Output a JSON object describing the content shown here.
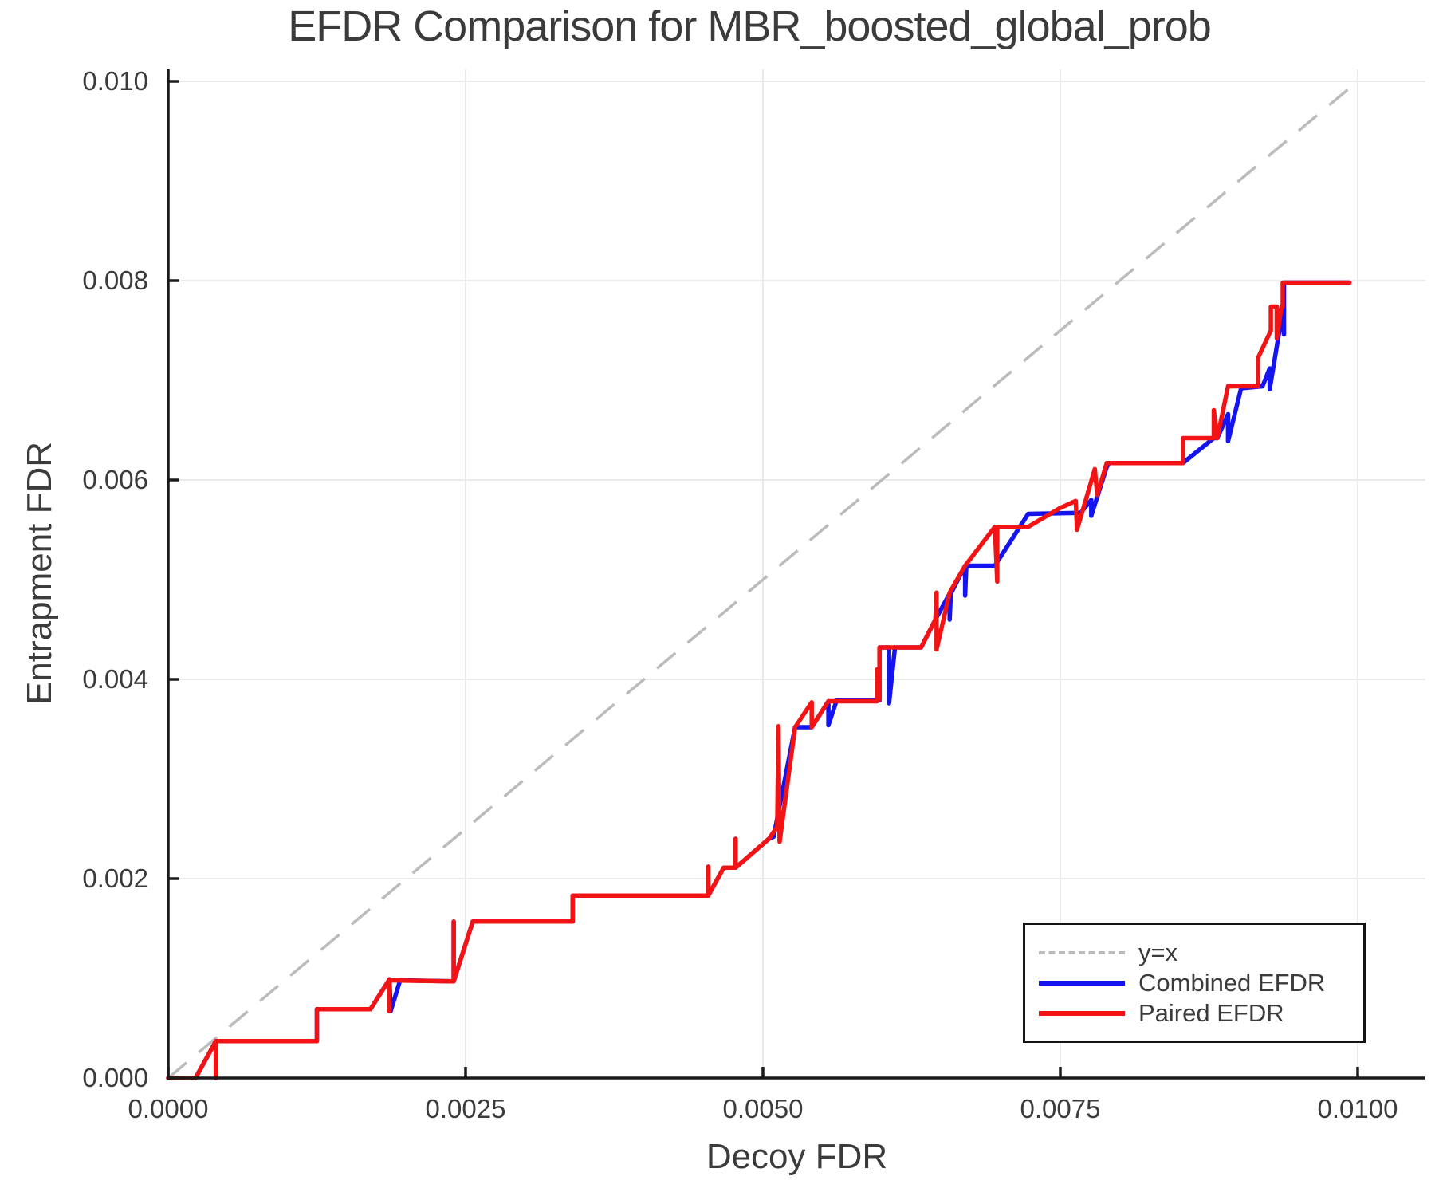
{
  "figure": {
    "title": "EFDR Comparison for MBR_boosted_global_prob",
    "xlabel": "Decoy FDR",
    "ylabel": "Entrapment FDR"
  },
  "colors": {
    "background": "#ffffff",
    "grid": "#e7e7e7",
    "spine": "#1a1a1a",
    "text": "#3b3b3b",
    "identity": "#bbbbbb",
    "combined": "#1414f0",
    "paired": "#f21414"
  },
  "chart_data": {
    "type": "line",
    "title": "EFDR Comparison for MBR_boosted_global_prob",
    "xlabel": "Decoy FDR",
    "ylabel": "Entrapment FDR",
    "xlim": [
      0,
      0.01057
    ],
    "ylim": [
      0,
      0.01012
    ],
    "grid": true,
    "legend_position": "lower right",
    "x_ticks": {
      "values": [
        0,
        0.0025,
        0.005,
        0.0075,
        0.01
      ],
      "labels": [
        "0.0000",
        "0.0025",
        "0.0050",
        "0.0075",
        "0.0100"
      ]
    },
    "y_ticks": {
      "values": [
        0,
        0.002,
        0.004,
        0.006,
        0.008,
        0.01
      ],
      "labels": [
        "0.000",
        "0.002",
        "0.004",
        "0.006",
        "0.008",
        "0.010"
      ]
    },
    "legend": {
      "entries": [
        {
          "label": "y=x",
          "color": "#bbbbbb",
          "style": "dashed"
        },
        {
          "label": "Combined EFDR",
          "color": "#1414f0",
          "style": "solid"
        },
        {
          "label": "Paired EFDR",
          "color": "#f21414",
          "style": "solid"
        }
      ]
    },
    "identity_line": {
      "label": "y=x",
      "color": "#bbbbbb",
      "points": [
        [
          0,
          0
        ],
        [
          0.00996,
          0.00996
        ]
      ]
    },
    "series": [
      {
        "name": "Combined EFDR",
        "color": "#1414f0",
        "points": [
          [
            0,
            0
          ],
          [
            0.00023,
            0
          ],
          [
            0.0004,
            0.00037
          ],
          [
            0.0004,
            0
          ],
          [
            0.0004,
            0.00037
          ],
          [
            0.00125,
            0.00037
          ],
          [
            0.00125,
            0.00069
          ],
          [
            0.0017,
            0.00069
          ],
          [
            0.00186,
            0.00099
          ],
          [
            0.00187,
            0.00067
          ],
          [
            0.00195,
            0.00098
          ],
          [
            0.0024,
            0.00097
          ],
          [
            0.0024,
            0.00157
          ],
          [
            0.0024,
            0.00097
          ],
          [
            0.00256,
            0.00157
          ],
          [
            0.0034,
            0.00157
          ],
          [
            0.0034,
            0.00183
          ],
          [
            0.00454,
            0.00183
          ],
          [
            0.00454,
            0.00212
          ],
          [
            0.00454,
            0.00183
          ],
          [
            0.00467,
            0.00211
          ],
          [
            0.00477,
            0.00211
          ],
          [
            0.00477,
            0.0024
          ],
          [
            0.00477,
            0.00211
          ],
          [
            0.00505,
            0.0024
          ],
          [
            0.00509,
            0.00242
          ],
          [
            0.00527,
            0.00352
          ],
          [
            0.00541,
            0.00352
          ],
          [
            0.00555,
            0.00378
          ],
          [
            0.00555,
            0.00354
          ],
          [
            0.00562,
            0.00379
          ],
          [
            0.00598,
            0.00379
          ],
          [
            0.00598,
            0.00432
          ],
          [
            0.00606,
            0.00432
          ],
          [
            0.00606,
            0.00376
          ],
          [
            0.00611,
            0.00432
          ],
          [
            0.00633,
            0.00432
          ],
          [
            0.00645,
            0.0046
          ],
          [
            0.00657,
            0.00486
          ],
          [
            0.00657,
            0.0046
          ],
          [
            0.00658,
            0.00486
          ],
          [
            0.0067,
            0.00514
          ],
          [
            0.0067,
            0.00484
          ],
          [
            0.00671,
            0.00514
          ],
          [
            0.00695,
            0.00514
          ],
          [
            0.00723,
            0.00566
          ],
          [
            0.00767,
            0.00567
          ],
          [
            0.00776,
            0.0058
          ],
          [
            0.00776,
            0.00564
          ],
          [
            0.00789,
            0.00613
          ],
          [
            0.00791,
            0.00617
          ],
          [
            0.00853,
            0.00617
          ],
          [
            0.00879,
            0.00642
          ],
          [
            0.00882,
            0.00642
          ],
          [
            0.00891,
            0.00666
          ],
          [
            0.00891,
            0.00639
          ],
          [
            0.00902,
            0.00692
          ],
          [
            0.0092,
            0.00694
          ],
          [
            0.00926,
            0.00712
          ],
          [
            0.00926,
            0.00691
          ],
          [
            0.00937,
            0.0077
          ],
          [
            0.00938,
            0.00746
          ],
          [
            0.00938,
            0.00798
          ],
          [
            0.00993,
            0.00798
          ]
        ]
      },
      {
        "name": "Paired EFDR",
        "color": "#f21414",
        "points": [
          [
            0,
            0
          ],
          [
            0.00023,
            0
          ],
          [
            0.0004,
            0.00037
          ],
          [
            0.0004,
            0
          ],
          [
            0.0004,
            0.00037
          ],
          [
            0.00125,
            0.00037
          ],
          [
            0.00125,
            0.00069
          ],
          [
            0.0017,
            0.00069
          ],
          [
            0.00186,
            0.00099
          ],
          [
            0.00186,
            0.00067
          ],
          [
            0.00186,
            0.00098
          ],
          [
            0.0024,
            0.00097
          ],
          [
            0.0024,
            0.00157
          ],
          [
            0.0024,
            0.00097
          ],
          [
            0.00256,
            0.00157
          ],
          [
            0.0034,
            0.00157
          ],
          [
            0.0034,
            0.00183
          ],
          [
            0.00454,
            0.00183
          ],
          [
            0.00454,
            0.00212
          ],
          [
            0.00454,
            0.00183
          ],
          [
            0.00467,
            0.00211
          ],
          [
            0.00477,
            0.00211
          ],
          [
            0.00477,
            0.0024
          ],
          [
            0.00477,
            0.00211
          ],
          [
            0.00505,
            0.0024
          ],
          [
            0.00512,
            0.00252
          ],
          [
            0.00513,
            0.00353
          ],
          [
            0.00514,
            0.00237
          ],
          [
            0.00527,
            0.00352
          ],
          [
            0.00541,
            0.00377
          ],
          [
            0.00541,
            0.00352
          ],
          [
            0.00555,
            0.00378
          ],
          [
            0.00596,
            0.00378
          ],
          [
            0.00596,
            0.0041
          ],
          [
            0.00598,
            0.0038
          ],
          [
            0.00598,
            0.00432
          ],
          [
            0.00633,
            0.00432
          ],
          [
            0.00645,
            0.0046
          ],
          [
            0.00646,
            0.00487
          ],
          [
            0.00646,
            0.0043
          ],
          [
            0.00657,
            0.00487
          ],
          [
            0.0067,
            0.00514
          ],
          [
            0.00695,
            0.00553
          ],
          [
            0.00697,
            0.00498
          ],
          [
            0.00697,
            0.00553
          ],
          [
            0.00723,
            0.00553
          ],
          [
            0.0075,
            0.00572
          ],
          [
            0.00763,
            0.00579
          ],
          [
            0.00764,
            0.0055
          ],
          [
            0.00779,
            0.00611
          ],
          [
            0.00781,
            0.00585
          ],
          [
            0.00789,
            0.00617
          ],
          [
            0.00853,
            0.00617
          ],
          [
            0.00853,
            0.00642
          ],
          [
            0.00879,
            0.00642
          ],
          [
            0.00879,
            0.0067
          ],
          [
            0.00881,
            0.0065
          ],
          [
            0.00882,
            0.00642
          ],
          [
            0.00891,
            0.00694
          ],
          [
            0.00916,
            0.00694
          ],
          [
            0.00916,
            0.00722
          ],
          [
            0.00927,
            0.0075
          ],
          [
            0.00927,
            0.00774
          ],
          [
            0.00932,
            0.00774
          ],
          [
            0.00932,
            0.00742
          ],
          [
            0.00936,
            0.00774
          ],
          [
            0.00937,
            0.00774
          ],
          [
            0.00937,
            0.00798
          ],
          [
            0.00993,
            0.00798
          ]
        ]
      }
    ]
  }
}
